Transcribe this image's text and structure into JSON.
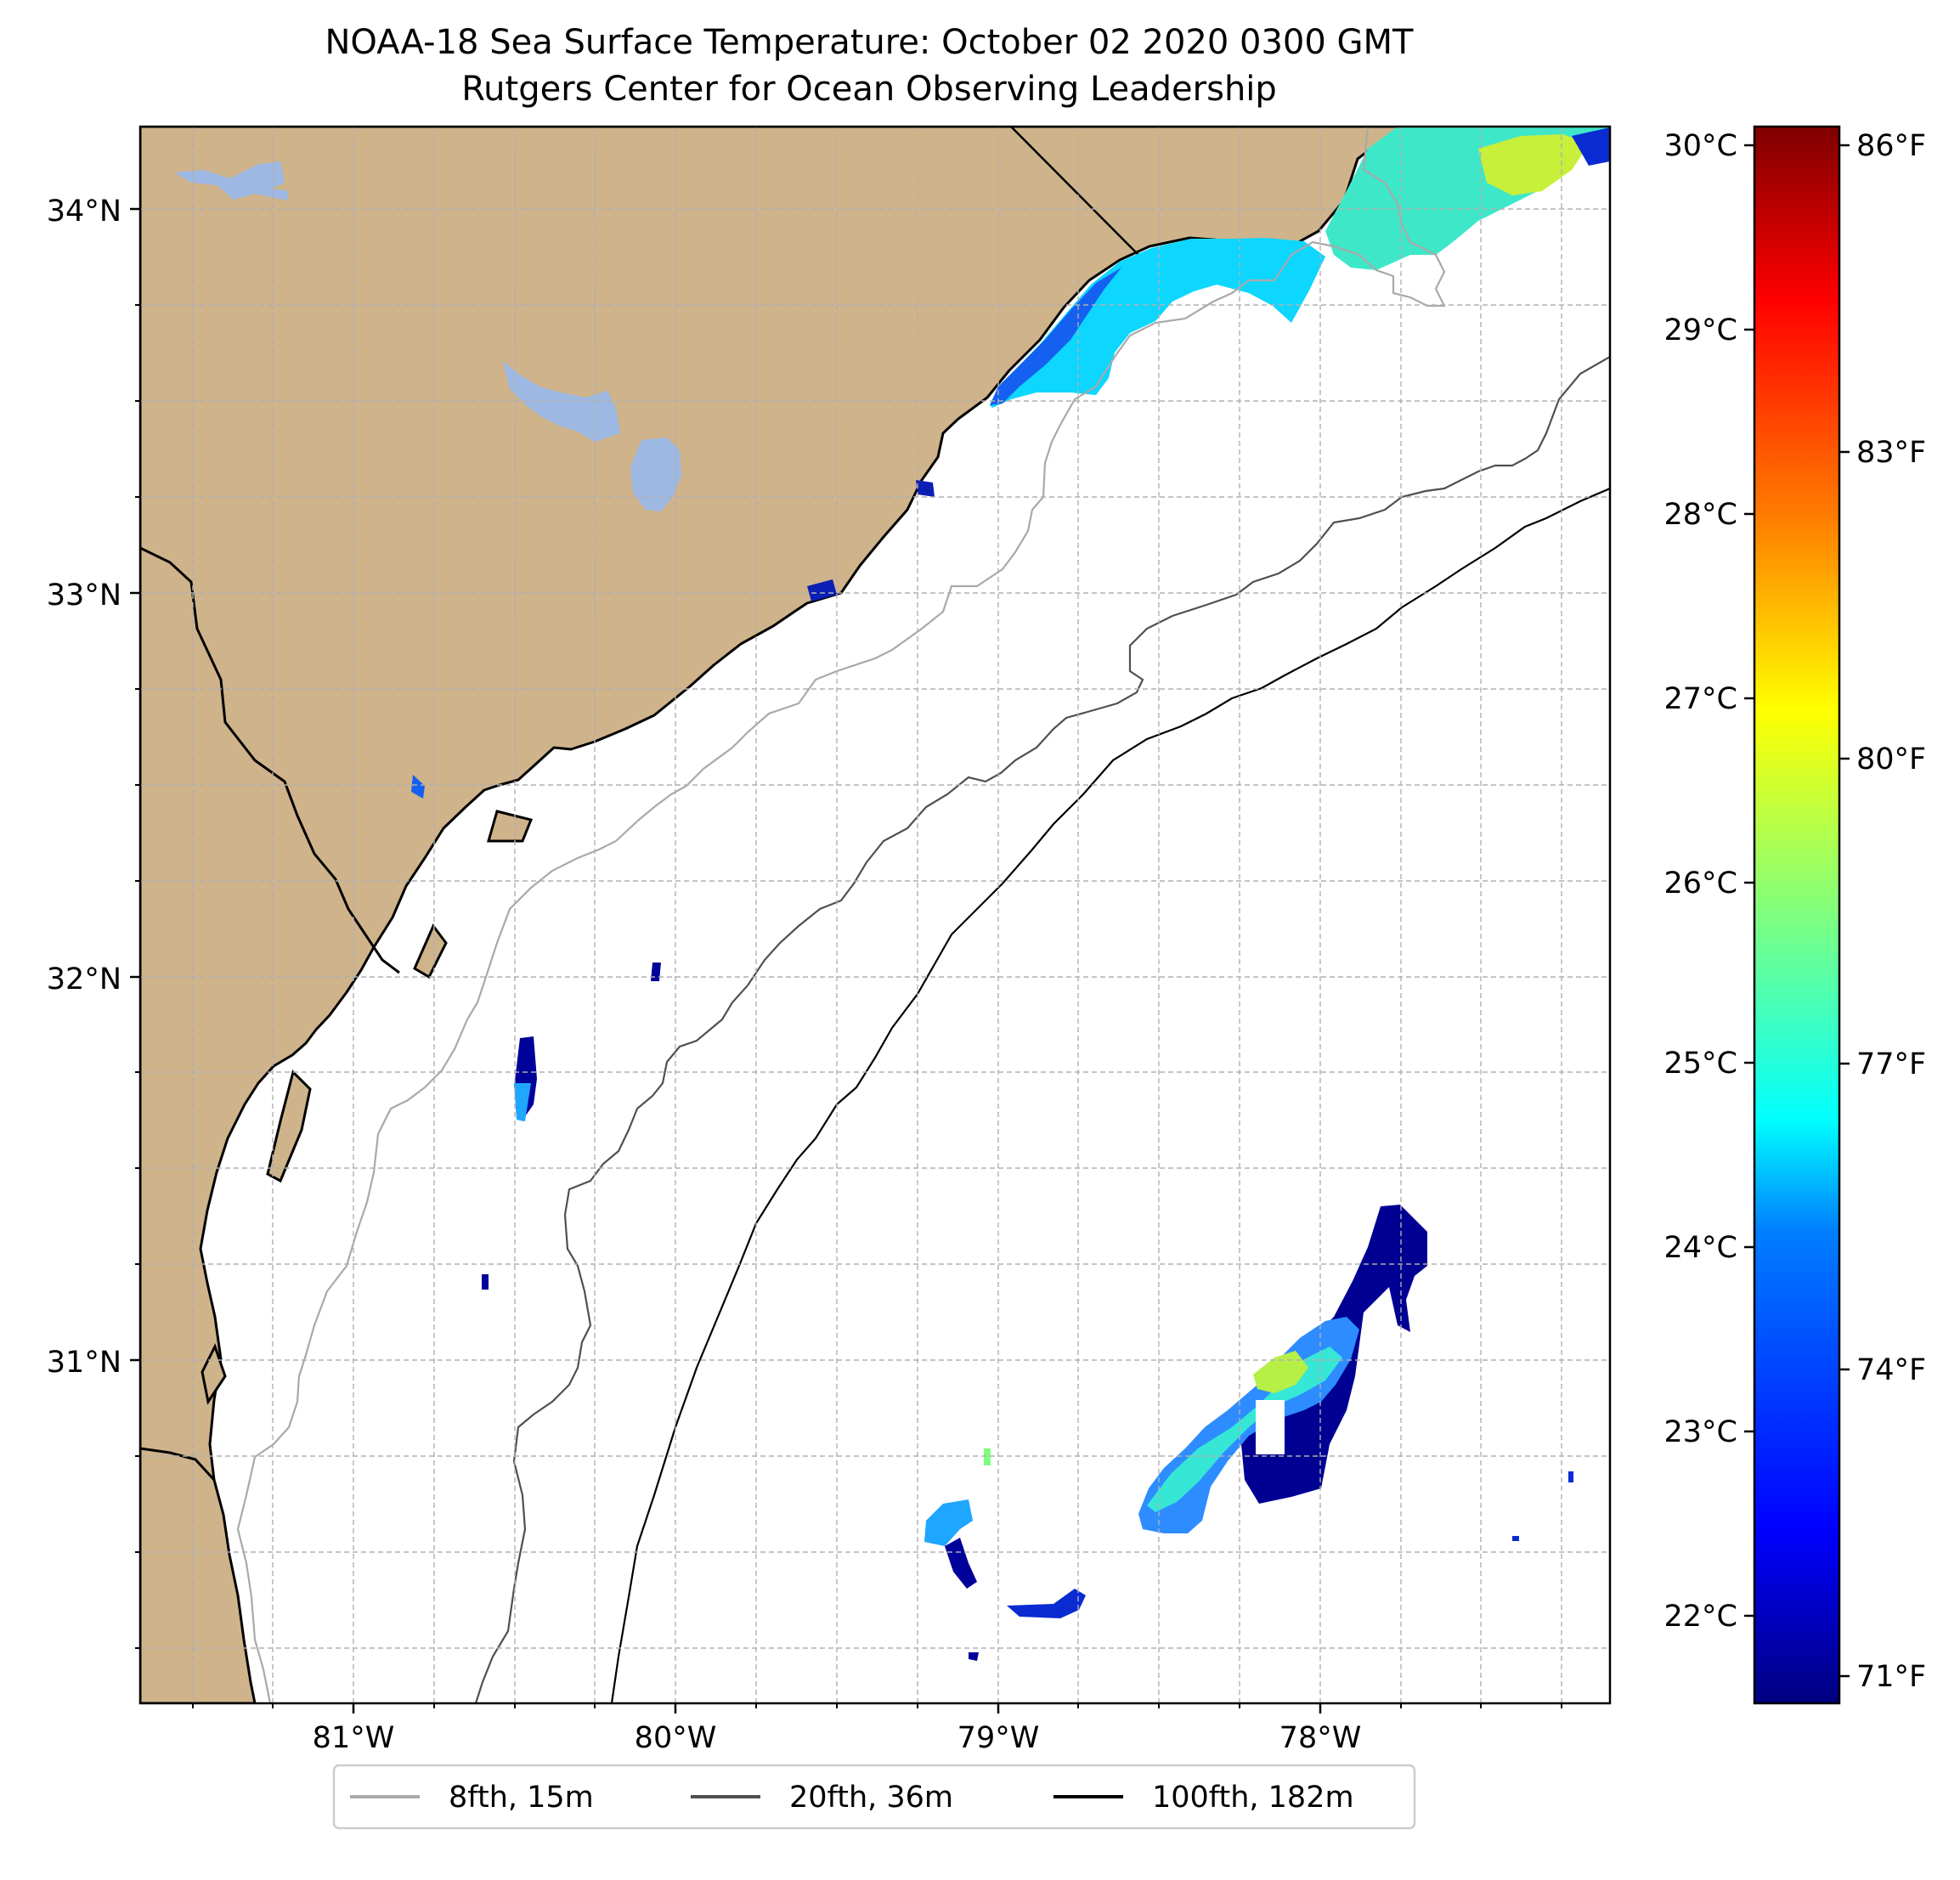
{
  "title": {
    "line1": "NOAA-18 Sea Surface Temperature: October 02 2020 0300 GMT",
    "line2": "Rutgers Center for Ocean Observing Leadership"
  },
  "map": {
    "lat_labels": [
      "34°N",
      "33°N",
      "32°N",
      "31°N"
    ],
    "lon_labels": [
      "81°W",
      "80°W",
      "79°W",
      "78°W"
    ],
    "land_color": "#cfb38b",
    "water_body_color": "#9db8e3",
    "grid": "dashed light gray"
  },
  "colorbar": {
    "celsius_ticks": [
      "30°C",
      "29°C",
      "28°C",
      "27°C",
      "26°C",
      "25°C",
      "24°C",
      "23°C",
      "22°C"
    ],
    "fahrenheit_ticks": [
      "86°F",
      "83°F",
      "80°F",
      "77°F",
      "74°F",
      "71°F"
    ],
    "colormap": "jet",
    "colors": [
      "#00007f",
      "#0000ff",
      "#007fff",
      "#00ffff",
      "#7fff7f",
      "#ffff00",
      "#ff7f00",
      "#ff0000",
      "#7f0000"
    ]
  },
  "legend": {
    "items": [
      {
        "label": "8fth, 15m",
        "color": "#a9a9a9"
      },
      {
        "label": "20fth, 36m",
        "color": "#505050"
      },
      {
        "label": "100fth, 182m",
        "color": "#000000"
      }
    ]
  }
}
